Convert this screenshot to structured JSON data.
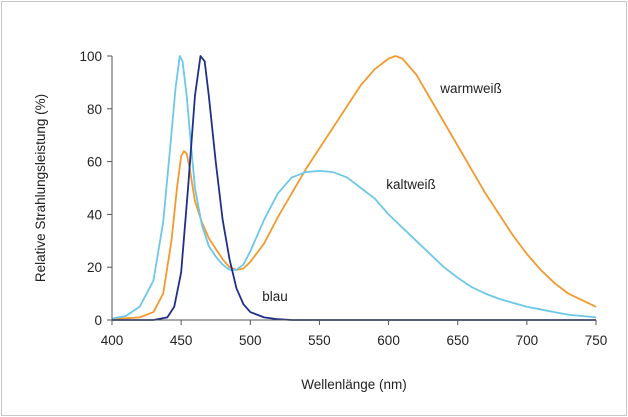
{
  "chart_data": {
    "type": "line",
    "title": "",
    "xlabel": "Wellenlänge (nm)",
    "ylabel": "Relative Strahlungsleistung (%)",
    "xlim": [
      400,
      750
    ],
    "ylim": [
      0,
      100
    ],
    "x_ticks": [
      400,
      450,
      500,
      550,
      600,
      650,
      700,
      750
    ],
    "y_ticks": [
      0,
      20,
      40,
      60,
      80,
      100
    ],
    "grid": false,
    "legend": "inline labels",
    "series": [
      {
        "name": "warmweiß",
        "color": "#f29a2e",
        "points": [
          [
            400,
            0.3
          ],
          [
            420,
            1
          ],
          [
            430,
            3
          ],
          [
            437,
            10
          ],
          [
            443,
            30
          ],
          [
            447,
            50
          ],
          [
            450,
            62
          ],
          [
            452,
            64
          ],
          [
            454,
            63
          ],
          [
            456,
            58
          ],
          [
            460,
            45
          ],
          [
            465,
            37
          ],
          [
            470,
            31
          ],
          [
            475,
            27
          ],
          [
            480,
            23
          ],
          [
            485,
            20
          ],
          [
            490,
            19
          ],
          [
            495,
            19.5
          ],
          [
            500,
            22
          ],
          [
            510,
            29
          ],
          [
            520,
            39
          ],
          [
            530,
            48
          ],
          [
            540,
            57
          ],
          [
            550,
            65
          ],
          [
            560,
            73
          ],
          [
            570,
            81
          ],
          [
            580,
            89
          ],
          [
            590,
            95
          ],
          [
            600,
            99
          ],
          [
            605,
            100
          ],
          [
            610,
            99
          ],
          [
            620,
            93
          ],
          [
            630,
            84
          ],
          [
            640,
            75
          ],
          [
            650,
            66
          ],
          [
            660,
            57
          ],
          [
            670,
            48
          ],
          [
            680,
            40
          ],
          [
            690,
            32
          ],
          [
            700,
            25
          ],
          [
            710,
            19
          ],
          [
            720,
            14
          ],
          [
            730,
            10
          ],
          [
            740,
            7.5
          ],
          [
            750,
            5
          ]
        ]
      },
      {
        "name": "kaltweiß",
        "color": "#6ec7e8",
        "points": [
          [
            400,
            0.5
          ],
          [
            410,
            1.5
          ],
          [
            420,
            5
          ],
          [
            430,
            15
          ],
          [
            437,
            37
          ],
          [
            442,
            65
          ],
          [
            446,
            88
          ],
          [
            449,
            100
          ],
          [
            451,
            98
          ],
          [
            454,
            85
          ],
          [
            457,
            67
          ],
          [
            460,
            50
          ],
          [
            465,
            36
          ],
          [
            470,
            28
          ],
          [
            475,
            24
          ],
          [
            480,
            21
          ],
          [
            485,
            19
          ],
          [
            490,
            19
          ],
          [
            495,
            21
          ],
          [
            500,
            26
          ],
          [
            510,
            38
          ],
          [
            520,
            48
          ],
          [
            530,
            54
          ],
          [
            540,
            56
          ],
          [
            550,
            56.5
          ],
          [
            560,
            56
          ],
          [
            570,
            54
          ],
          [
            580,
            50
          ],
          [
            590,
            46
          ],
          [
            600,
            40
          ],
          [
            610,
            35
          ],
          [
            620,
            30
          ],
          [
            630,
            25
          ],
          [
            640,
            20
          ],
          [
            650,
            16
          ],
          [
            660,
            12.5
          ],
          [
            670,
            10
          ],
          [
            680,
            8
          ],
          [
            690,
            6.5
          ],
          [
            700,
            5
          ],
          [
            710,
            4
          ],
          [
            720,
            3
          ],
          [
            730,
            2
          ],
          [
            740,
            1.5
          ],
          [
            750,
            1
          ]
        ]
      },
      {
        "name": "blau",
        "color": "#1f2f8a",
        "points": [
          [
            400,
            0
          ],
          [
            430,
            0
          ],
          [
            440,
            1
          ],
          [
            445,
            5
          ],
          [
            450,
            18
          ],
          [
            455,
            50
          ],
          [
            460,
            85
          ],
          [
            464,
            100
          ],
          [
            467,
            98
          ],
          [
            470,
            85
          ],
          [
            475,
            60
          ],
          [
            480,
            38
          ],
          [
            485,
            23
          ],
          [
            490,
            12
          ],
          [
            495,
            6
          ],
          [
            500,
            3
          ],
          [
            510,
            1
          ],
          [
            520,
            0.3
          ],
          [
            530,
            0
          ],
          [
            750,
            0
          ]
        ]
      }
    ]
  }
}
